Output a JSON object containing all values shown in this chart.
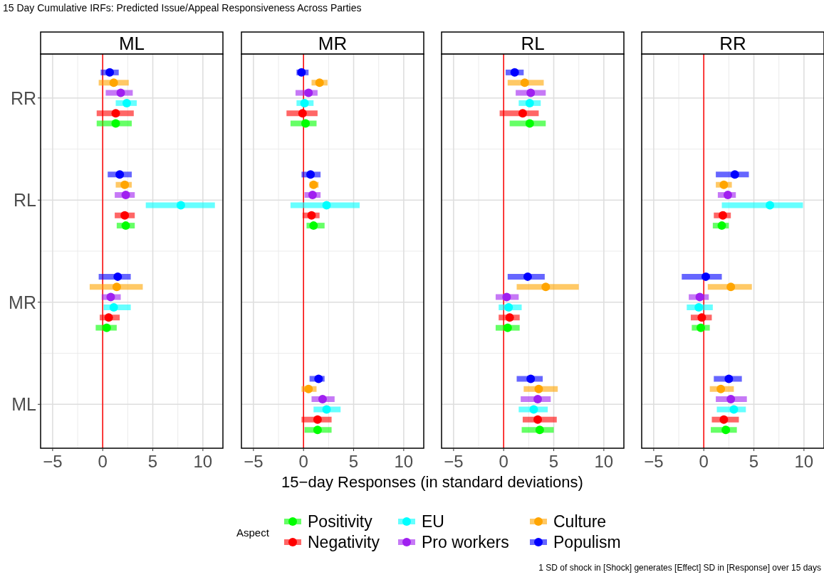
{
  "chart_data": [
    {
      "type": "scatter",
      "orientation": "horizontal",
      "title": "ML",
      "xlabel": "15−day Responses (in standard deviations)",
      "legend_title": "Aspect",
      "legend": "bottom",
      "grid": true,
      "marker": "circle",
      "annotations": [
        "15 Day Cumulative IRFs: Predicted Issue/Appeal Responsiveness Across Parties",
        "1 SD of shock in [Shock] generates [Effect] SD in [Response] over 15 days"
      ],
      "categories": [
        "RR",
        "RL",
        "MR",
        "ML"
      ],
      "xlim": [
        -6.2,
        12
      ],
      "xticks": [
        -5,
        0,
        5,
        10
      ],
      "ref_lines": [
        {
          "axis": "x",
          "value": 0,
          "color": "#ff0000"
        }
      ],
      "series": [
        {
          "name": "Positivity",
          "color": "#00ff00",
          "values": [
            1.3,
            2.3,
            0.4,
            null
          ],
          "errors": [
            [
              -0.6,
              2.9
            ],
            [
              1.4,
              3.2
            ],
            [
              -0.7,
              1.4
            ],
            null
          ]
        },
        {
          "name": "Negativity",
          "color": "#ff0000",
          "values": [
            1.3,
            2.2,
            0.6,
            null
          ],
          "errors": [
            [
              -0.6,
              3.1
            ],
            [
              1.2,
              3.2
            ],
            [
              -0.3,
              1.7
            ],
            null
          ]
        },
        {
          "name": "EU",
          "color": "#00ffff",
          "values": [
            2.4,
            7.8,
            1.1,
            null
          ],
          "errors": [
            [
              1.3,
              3.4
            ],
            [
              4.3,
              11.2
            ],
            [
              0.1,
              2.8
            ],
            null
          ]
        },
        {
          "name": "Pro workers",
          "color": "#a020f0",
          "values": [
            1.8,
            2.3,
            0.8,
            null
          ],
          "errors": [
            [
              0.3,
              3.0
            ],
            [
              1.2,
              3.2
            ],
            [
              -0.1,
              1.8
            ],
            null
          ]
        },
        {
          "name": "Culture",
          "color": "#ffa500",
          "values": [
            1.1,
            2.2,
            1.4,
            null
          ],
          "errors": [
            [
              -0.4,
              2.6
            ],
            [
              1.3,
              2.9
            ],
            [
              -1.3,
              4.0
            ],
            null
          ]
        },
        {
          "name": "Populism",
          "color": "#0000ff",
          "values": [
            0.7,
            1.7,
            1.5,
            null
          ],
          "errors": [
            [
              -0.2,
              1.6
            ],
            [
              0.5,
              2.9
            ],
            [
              -0.4,
              2.8
            ],
            null
          ]
        }
      ]
    },
    {
      "type": "scatter",
      "orientation": "horizontal",
      "title": "MR",
      "grid": true,
      "marker": "circle",
      "tick_labels": "x",
      "categories": [
        null,
        null,
        null,
        null
      ],
      "xlim": [
        -6.2,
        12
      ],
      "xticks": [
        -5,
        0,
        5,
        10
      ],
      "ref_lines": [
        {
          "axis": "x",
          "value": 0,
          "color": "#ff0000"
        }
      ],
      "series": [
        {
          "color": "#00ff00",
          "values": [
            0.2,
            1.0,
            null,
            1.4
          ],
          "errors": [
            [
              -1.3,
              1.3
            ],
            [
              0.3,
              2.1
            ],
            null,
            [
              0.1,
              2.8
            ]
          ]
        },
        {
          "color": "#ff0000",
          "values": [
            -0.1,
            0.8,
            null,
            1.4
          ],
          "errors": [
            [
              -1.7,
              1.4
            ],
            [
              -0.1,
              1.6
            ],
            null,
            [
              -0.2,
              2.8
            ]
          ]
        },
        {
          "color": "#00ffff",
          "values": [
            0.1,
            2.3,
            null,
            2.3
          ],
          "errors": [
            [
              -0.7,
              1.0
            ],
            [
              -1.3,
              5.6
            ],
            null,
            [
              1.0,
              3.7
            ]
          ]
        },
        {
          "color": "#a020f0",
          "values": [
            0.5,
            0.9,
            null,
            1.9
          ],
          "errors": [
            [
              -0.8,
              1.4
            ],
            [
              0.1,
              1.7
            ],
            null,
            [
              0.8,
              3.1
            ]
          ]
        },
        {
          "color": "#ffa500",
          "values": [
            1.6,
            1.0,
            null,
            0.5
          ],
          "errors": [
            [
              0.8,
              2.4
            ],
            [
              0.6,
              1.5
            ],
            null,
            [
              -0.2,
              1.3
            ]
          ]
        },
        {
          "color": "#0000ff",
          "values": [
            -0.2,
            0.7,
            null,
            1.5
          ],
          "errors": [
            [
              -0.7,
              0.5
            ],
            [
              -0.2,
              1.7
            ],
            null,
            [
              0.6,
              2.1
            ]
          ]
        }
      ]
    },
    {
      "type": "scatter",
      "orientation": "horizontal",
      "title": "RL",
      "grid": true,
      "marker": "circle",
      "tick_labels": "x",
      "categories": [
        null,
        null,
        null,
        null
      ],
      "xlim": [
        -6.2,
        12
      ],
      "xticks": [
        -5,
        0,
        5,
        10
      ],
      "ref_lines": [
        {
          "axis": "x",
          "value": 0,
          "color": "#ff0000"
        }
      ],
      "series": [
        {
          "color": "#00ff00",
          "values": [
            2.6,
            null,
            0.4,
            3.6
          ],
          "errors": [
            [
              0.6,
              4.2
            ],
            null,
            [
              -0.8,
              1.6
            ],
            [
              1.8,
              5.0
            ]
          ]
        },
        {
          "color": "#ff0000",
          "values": [
            1.9,
            null,
            0.6,
            3.4
          ],
          "errors": [
            [
              -0.4,
              3.5
            ],
            null,
            [
              -0.5,
              1.6
            ],
            [
              1.9,
              5.3
            ]
          ]
        },
        {
          "color": "#00ffff",
          "values": [
            2.6,
            null,
            0.5,
            3.0
          ],
          "errors": [
            [
              1.5,
              3.7
            ],
            null,
            [
              -0.5,
              1.8
            ],
            [
              1.5,
              4.4
            ]
          ]
        },
        {
          "color": "#a020f0",
          "values": [
            2.7,
            null,
            0.3,
            3.4
          ],
          "errors": [
            [
              1.2,
              4.2
            ],
            null,
            [
              -0.8,
              1.5
            ],
            [
              1.7,
              4.7
            ]
          ]
        },
        {
          "color": "#ffa500",
          "values": [
            2.1,
            null,
            4.2,
            3.5
          ],
          "errors": [
            [
              0.4,
              4.0
            ],
            null,
            [
              1.3,
              7.5
            ],
            [
              2.0,
              5.4
            ]
          ]
        },
        {
          "color": "#0000ff",
          "values": [
            1.1,
            null,
            2.4,
            2.7
          ],
          "errors": [
            [
              0.2,
              2.0
            ],
            null,
            [
              0.4,
              4.1
            ],
            [
              1.3,
              3.9
            ]
          ]
        }
      ]
    },
    {
      "type": "scatter",
      "orientation": "horizontal",
      "title": "RR",
      "grid": true,
      "marker": "circle",
      "tick_labels": "x",
      "categories": [
        null,
        null,
        null,
        null
      ],
      "xlim": [
        -6.2,
        12
      ],
      "xticks": [
        -5,
        0,
        5,
        10
      ],
      "ref_lines": [
        {
          "axis": "x",
          "value": 0,
          "color": "#ff0000"
        }
      ],
      "series": [
        {
          "color": "#00ff00",
          "values": [
            null,
            1.8,
            -0.3,
            2.2
          ],
          "errors": [
            null,
            [
              0.9,
              2.5
            ],
            [
              -1.2,
              0.6
            ],
            [
              0.7,
              3.3
            ]
          ]
        },
        {
          "color": "#ff0000",
          "values": [
            null,
            1.9,
            -0.2,
            2.0
          ],
          "errors": [
            null,
            [
              1.0,
              2.7
            ],
            [
              -1.3,
              0.8
            ],
            [
              0.8,
              3.5
            ]
          ]
        },
        {
          "color": "#00ffff",
          "values": [
            null,
            6.6,
            -0.5,
            3.0
          ],
          "errors": [
            null,
            [
              1.8,
              9.9
            ],
            [
              -1.7,
              0.9
            ],
            [
              1.3,
              4.2
            ]
          ]
        },
        {
          "color": "#a020f0",
          "values": [
            null,
            2.4,
            -0.4,
            2.7
          ],
          "errors": [
            null,
            [
              1.4,
              3.2
            ],
            [
              -1.5,
              0.5
            ],
            [
              1.2,
              4.3
            ]
          ]
        },
        {
          "color": "#ffa500",
          "values": [
            null,
            2.0,
            2.7,
            1.7
          ],
          "errors": [
            null,
            [
              1.2,
              2.8
            ],
            [
              0.4,
              4.8
            ],
            [
              0.6,
              3.0
            ]
          ]
        },
        {
          "color": "#0000ff",
          "values": [
            null,
            3.1,
            0.2,
            2.5
          ],
          "errors": [
            null,
            [
              1.2,
              4.5
            ],
            [
              -2.2,
              1.8
            ],
            [
              1.0,
              3.8
            ]
          ]
        }
      ]
    }
  ]
}
